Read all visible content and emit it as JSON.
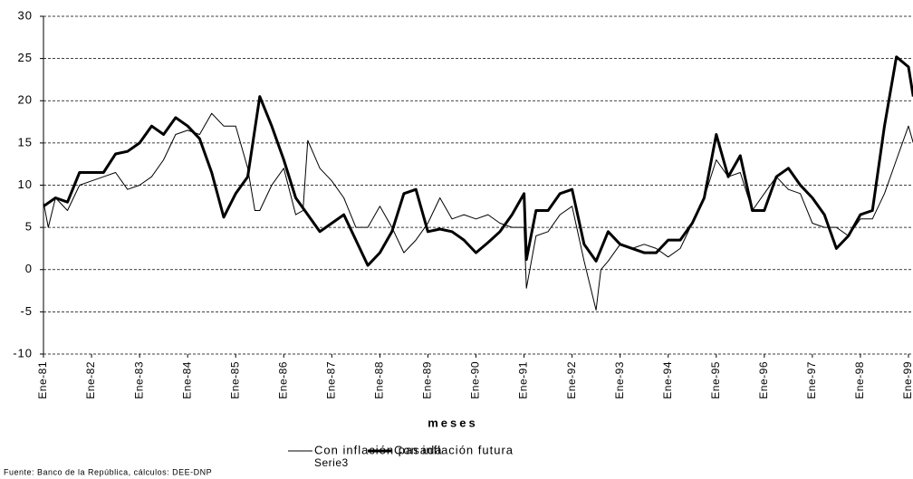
{
  "chart_data": {
    "type": "line",
    "x_label": "meses",
    "source": "Fuente: Banco de la República, cálculos: DEE-DNP",
    "stray_label": "Serie3",
    "xlim": [
      1981,
      1999
    ],
    "xticks": [
      {
        "value": 1981,
        "label": "Ene-81"
      },
      {
        "value": 1982,
        "label": "Ene-82"
      },
      {
        "value": 1983,
        "label": "Ene-83"
      },
      {
        "value": 1984,
        "label": "Ene-84"
      },
      {
        "value": 1985,
        "label": "Ene-85"
      },
      {
        "value": 1986,
        "label": "Ene-86"
      },
      {
        "value": 1987,
        "label": "Ene-87"
      },
      {
        "value": 1988,
        "label": "Ene-88"
      },
      {
        "value": 1989,
        "label": "Ene-89"
      },
      {
        "value": 1990,
        "label": "Ene-90"
      },
      {
        "value": 1991,
        "label": "Ene-91"
      },
      {
        "value": 1992,
        "label": "Ene-92"
      },
      {
        "value": 1993,
        "label": "Ene-93"
      },
      {
        "value": 1994,
        "label": "Ene-94"
      },
      {
        "value": 1995,
        "label": "Ene-95"
      },
      {
        "value": 1996,
        "label": "Ene-96"
      },
      {
        "value": 1997,
        "label": "Ene-97"
      },
      {
        "value": 1998,
        "label": "Ene-98"
      },
      {
        "value": 1999,
        "label": "Ene-99"
      }
    ],
    "ylim": [
      -10,
      30
    ],
    "yticks": [
      -10,
      -5,
      0,
      5,
      10,
      15,
      20,
      25,
      30
    ],
    "grid": true,
    "series": [
      {
        "name": "Con inflación pasada",
        "color": "#000000",
        "width": 1,
        "x": [
          1981,
          1981.1,
          1981.25,
          1981.5,
          1981.75,
          1982,
          1982.25,
          1982.5,
          1982.75,
          1983,
          1983.25,
          1983.5,
          1983.75,
          1984,
          1984.25,
          1984.5,
          1984.75,
          1985,
          1985.25,
          1985.4,
          1985.5,
          1985.75,
          1986,
          1986.25,
          1986.4,
          1986.5,
          1986.75,
          1987,
          1987.25,
          1987.5,
          1987.75,
          1988,
          1988.25,
          1988.5,
          1988.75,
          1989,
          1989.25,
          1989.5,
          1989.75,
          1990,
          1990.25,
          1990.5,
          1990.75,
          1991,
          1991.05,
          1991.25,
          1991.5,
          1991.75,
          1992,
          1992.25,
          1992.5,
          1992.6,
          1992.75,
          1993,
          1993.25,
          1993.5,
          1993.75,
          1994,
          1994.25,
          1994.5,
          1994.75,
          1995,
          1995.25,
          1995.5,
          1995.75,
          1996,
          1996.25,
          1996.5,
          1996.75,
          1997,
          1997.25,
          1997.5,
          1997.75,
          1998,
          1998.25,
          1998.5,
          1998.75,
          1999,
          1999.1
        ],
        "values": [
          8,
          5,
          8.5,
          7,
          10,
          10.5,
          11,
          11.5,
          9.5,
          10,
          11,
          13,
          16,
          16.5,
          16,
          18.5,
          17,
          17,
          12,
          7,
          7,
          10,
          12,
          6.5,
          7,
          15.3,
          12,
          10.5,
          8.5,
          5,
          5,
          7.5,
          5,
          2,
          3.5,
          5.5,
          8.5,
          6,
          6.5,
          6,
          6.5,
          5.5,
          5,
          5,
          -2.2,
          4,
          4.5,
          6.5,
          7.5,
          1,
          -4.8,
          0,
          1,
          3,
          2.5,
          3,
          2.5,
          1.5,
          2.5,
          5.5,
          8.5,
          13,
          11,
          11.5,
          7,
          9,
          11,
          9.5,
          9,
          5.5,
          5,
          5,
          4,
          6,
          6,
          9,
          13,
          17,
          15
        ]
      },
      {
        "name": "Con inflación futura",
        "color": "#000000",
        "width": 3,
        "x": [
          1981,
          1981.25,
          1981.5,
          1981.75,
          1982,
          1982.25,
          1982.5,
          1982.75,
          1983,
          1983.25,
          1983.5,
          1983.75,
          1984,
          1984.25,
          1984.5,
          1984.75,
          1985,
          1985.25,
          1985.5,
          1985.75,
          1986,
          1986.25,
          1986.5,
          1986.75,
          1987,
          1987.25,
          1987.5,
          1987.75,
          1988,
          1988.25,
          1988.5,
          1988.75,
          1989,
          1989.25,
          1989.5,
          1989.75,
          1990,
          1990.25,
          1990.5,
          1990.75,
          1991,
          1991.05,
          1991.25,
          1991.5,
          1991.75,
          1992,
          1992.25,
          1992.5,
          1992.75,
          1993,
          1993.25,
          1993.5,
          1993.75,
          1994,
          1994.25,
          1994.5,
          1994.75,
          1995,
          1995.25,
          1995.5,
          1995.75,
          1996,
          1996.25,
          1996.5,
          1996.75,
          1997,
          1997.25,
          1997.5,
          1997.75,
          1998,
          1998.25,
          1998.5,
          1998.75,
          1999,
          1999.1
        ],
        "values": [
          7.5,
          8.5,
          8,
          11.5,
          11.5,
          11.5,
          13.7,
          14,
          15,
          17,
          16,
          18,
          17,
          15.5,
          11.5,
          6.2,
          9,
          11,
          20.5,
          17,
          13,
          8.5,
          6.5,
          4.5,
          5.5,
          6.5,
          3.5,
          0.5,
          2,
          4.5,
          9,
          9.5,
          4.5,
          4.8,
          4.5,
          3.5,
          2,
          3.2,
          4.5,
          6.5,
          9,
          1.2,
          7,
          7,
          9,
          9.5,
          3,
          1,
          4.5,
          3,
          2.5,
          2,
          2,
          3.5,
          3.5,
          5.5,
          8.5,
          16,
          11,
          13.5,
          7,
          7,
          11,
          12,
          10,
          8.5,
          6.5,
          2.5,
          4,
          6.5,
          7,
          17,
          25.2,
          24,
          20.5
        ]
      }
    ]
  }
}
